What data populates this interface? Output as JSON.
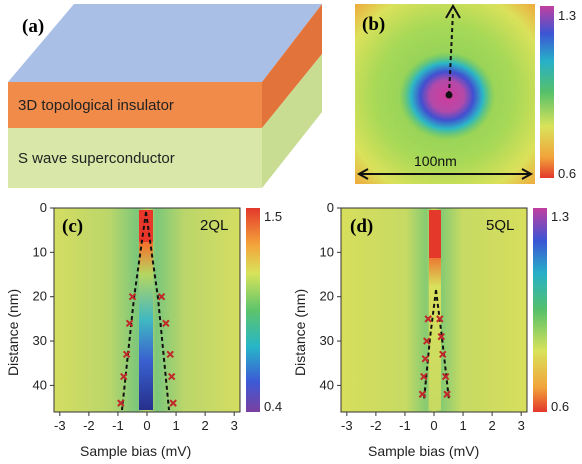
{
  "panels": {
    "a": {
      "label": "(a)",
      "top_layer": "3D topological insulator",
      "bottom_layer": "S wave superconductor",
      "colors": {
        "top_face": "#a9bfe6",
        "ti_layer": "#f08b4a",
        "sc_layer": "#d9e7a8"
      }
    },
    "b": {
      "label": "(b)",
      "scale_bar": "100nm",
      "colorbar_max": "1.3",
      "colorbar_min": "0.6"
    },
    "c": {
      "label": "(c)",
      "thickness": "2QL",
      "colorbar_max": "1.5",
      "colorbar_min": "0.4"
    },
    "d": {
      "label": "(d)",
      "thickness": "5QL",
      "colorbar_max": "1.3",
      "colorbar_min": "0.6"
    }
  },
  "axes": {
    "xlabel": "Sample bias (mV)",
    "ylabel": "Distance (nm)",
    "x_ticks": [
      "-3",
      "-2",
      "-1",
      "0",
      "1",
      "2",
      "3"
    ],
    "y_ticks": [
      "0",
      "10",
      "20",
      "30",
      "40"
    ]
  },
  "chart_data": [
    {
      "type": "heatmap",
      "panel": "c",
      "title": "2QL",
      "xlabel": "Sample bias (mV)",
      "ylabel": "Distance (nm)",
      "xlim": [
        -3.2,
        3.2
      ],
      "ylim": [
        0,
        46
      ],
      "colorbar": [
        0.4,
        1.5
      ],
      "markers": [
        {
          "x": -0.5,
          "y": 20
        },
        {
          "x": 0.5,
          "y": 20
        },
        {
          "x": -0.6,
          "y": 26
        },
        {
          "x": 0.65,
          "y": 26
        },
        {
          "x": -0.7,
          "y": 33
        },
        {
          "x": 0.8,
          "y": 33
        },
        {
          "x": -0.8,
          "y": 38
        },
        {
          "x": 0.85,
          "y": 38
        },
        {
          "x": -0.9,
          "y": 44
        },
        {
          "x": 0.9,
          "y": 44
        }
      ]
    },
    {
      "type": "heatmap",
      "panel": "d",
      "title": "5QL",
      "xlabel": "Sample bias (mV)",
      "ylabel": "Distance (nm)",
      "xlim": [
        -3.2,
        3.2
      ],
      "ylim": [
        0,
        46
      ],
      "colorbar": [
        0.6,
        1.3
      ],
      "markers": [
        {
          "x": -0.2,
          "y": 25
        },
        {
          "x": 0.2,
          "y": 25
        },
        {
          "x": -0.25,
          "y": 30
        },
        {
          "x": 0.25,
          "y": 29
        },
        {
          "x": -0.3,
          "y": 34
        },
        {
          "x": 0.3,
          "y": 33
        },
        {
          "x": -0.35,
          "y": 38
        },
        {
          "x": 0.4,
          "y": 38
        },
        {
          "x": -0.4,
          "y": 42
        },
        {
          "x": 0.45,
          "y": 42
        }
      ]
    }
  ]
}
